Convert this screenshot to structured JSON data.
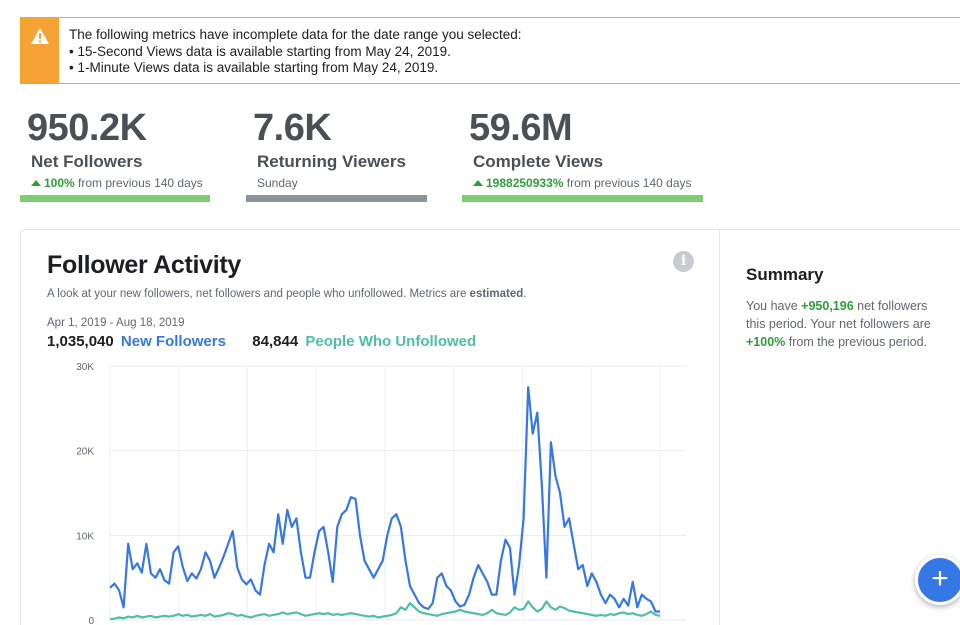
{
  "warning": {
    "icon": "warning-icon",
    "lines": [
      "The following metrics have incomplete data for the date range you selected:",
      "• 15-Second Views data is available starting from May 24, 2019.",
      "• 1-Minute Views data is available starting from May 24, 2019."
    ]
  },
  "metrics": [
    {
      "value": "950.2K",
      "label": "Net Followers",
      "change": "100%",
      "sub": "from previous 140 days",
      "bar_color": "#7bcf72"
    },
    {
      "value": "7.6K",
      "label": "Returning Viewers",
      "sub": "Sunday",
      "bar_color": "#8d949e"
    },
    {
      "value": "59.6M",
      "label": "Complete Views",
      "change": "1988250933%",
      "sub": "from previous 140 days",
      "bar_color": "#7bcf72"
    }
  ],
  "follower_activity": {
    "title": "Follower Activity",
    "description": "A look at your new followers, net followers and people who unfollowed. Metrics are",
    "description_bold": "estimated",
    "description_end": ".",
    "date_range": "Apr 1, 2019 - Aug 18, 2019",
    "new_followers_count": "1,035,040",
    "new_followers_label": "New Followers",
    "unfollowed_count": "84,844",
    "unfollowed_label": "People Who Unfollowed",
    "info_icon": "i"
  },
  "summary": {
    "title": "Summary",
    "text_1": "You have",
    "net": "+950,196",
    "text_2": "net followers this period. Your net followers are",
    "pct": "+100%",
    "text_3": "from the previous period."
  },
  "fab": {
    "label": "+"
  },
  "colors": {
    "new_followers": "#3578e5",
    "unfollowed": "#4dbfa4",
    "positive": "#2e9e3b"
  },
  "chart_data": {
    "type": "line",
    "title": "Follower Activity",
    "xlabel": "",
    "ylabel": "",
    "ylim": [
      0,
      30000
    ],
    "yticks": [
      "0",
      "10K",
      "20K",
      "30K"
    ],
    "x_start": "Apr 1, 2019",
    "x_end": "Aug 18, 2019",
    "series": [
      {
        "name": "New Followers",
        "color": "#3578e5",
        "values": [
          3800,
          4300,
          3500,
          1500,
          9000,
          6000,
          6700,
          5600,
          9000,
          5500,
          5000,
          6000,
          4700,
          4300,
          8000,
          8700,
          6300,
          4600,
          5500,
          4900,
          6000,
          8000,
          7000,
          5000,
          6200,
          7500,
          9000,
          10500,
          6200,
          4800,
          4200,
          4800,
          3500,
          3000,
          6500,
          9000,
          8000,
          12500,
          9000,
          13000,
          11000,
          12000,
          8000,
          5000,
          5000,
          8000,
          10500,
          11000,
          8000,
          4500,
          11000,
          12500,
          13000,
          14500,
          14300,
          10000,
          7000,
          6000,
          5000,
          6000,
          7000,
          10000,
          12000,
          12500,
          11000,
          7000,
          4000,
          3000,
          2000,
          1500,
          1300,
          2000,
          5000,
          5500,
          4000,
          3500,
          2200,
          1600,
          1800,
          3000,
          5000,
          6500,
          5500,
          4500,
          3000,
          3000,
          7000,
          9500,
          8500,
          3000,
          6500,
          12000,
          27500,
          22000,
          24500,
          16000,
          5000,
          21000,
          17000,
          15000,
          11000,
          12000,
          9000,
          6000,
          6500,
          4000,
          5500,
          4500,
          3000,
          2000,
          3000,
          2500,
          1500,
          2500,
          1700,
          4500,
          1500,
          3000,
          2500,
          2200,
          1000,
          1000
        ]
      },
      {
        "name": "People Who Unfollowed",
        "color": "#4dbfa4",
        "values": [
          100,
          150,
          300,
          200,
          400,
          300,
          500,
          300,
          400,
          500,
          300,
          400,
          500,
          400,
          500,
          700,
          500,
          600,
          400,
          500,
          600,
          500,
          700,
          400,
          500,
          600,
          800,
          700,
          500,
          600,
          400,
          300,
          500,
          600,
          700,
          500,
          600,
          700,
          900,
          700,
          800,
          900,
          700,
          500,
          600,
          700,
          800,
          700,
          800,
          600,
          700,
          600,
          700,
          800,
          700,
          600,
          500,
          400,
          500,
          300,
          400,
          500,
          600,
          800,
          1500,
          1200,
          2000,
          1500,
          1000,
          800,
          700,
          600,
          500,
          700,
          800,
          900,
          1000,
          1200,
          1000,
          900,
          800,
          700,
          600,
          800,
          1200,
          800,
          700,
          600,
          900,
          1500,
          1200,
          1300,
          2200,
          1500,
          1000,
          1300,
          2200,
          1500,
          1200,
          1600,
          1400,
          1100,
          1000,
          900,
          800,
          700,
          600,
          500,
          600,
          500,
          700,
          600,
          800,
          900,
          700,
          800,
          600,
          500,
          700,
          1000,
          600,
          500
        ]
      }
    ]
  }
}
